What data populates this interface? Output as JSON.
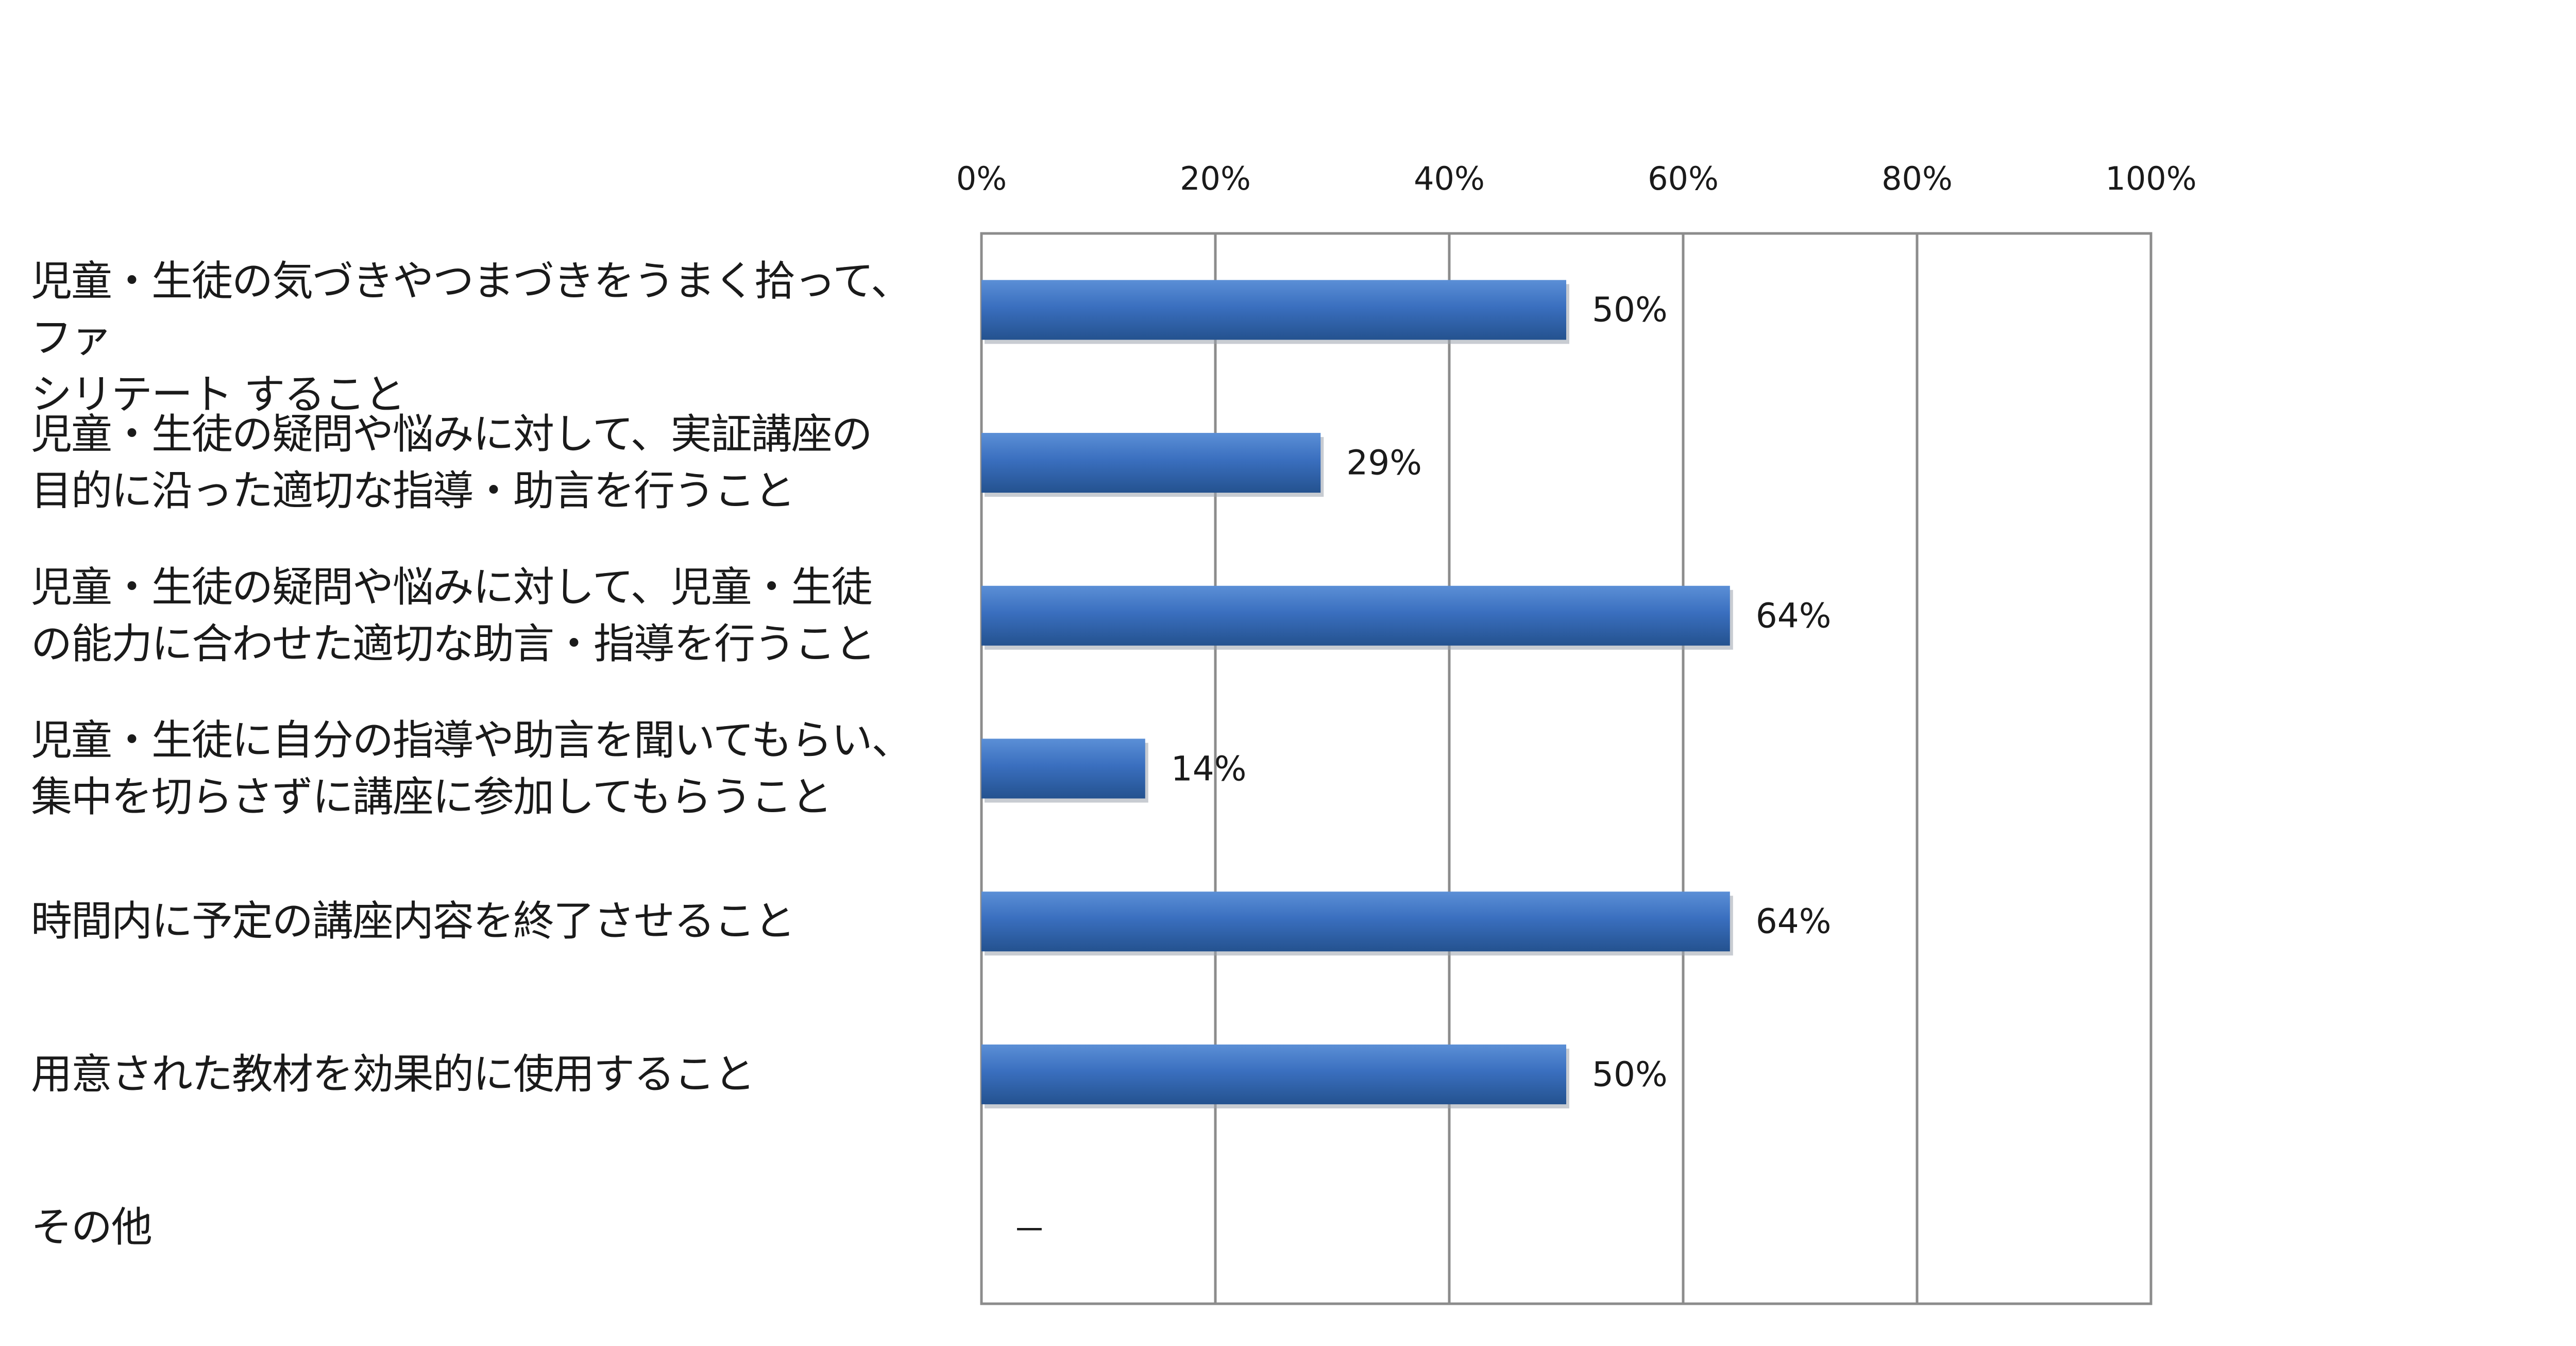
{
  "chart_data": {
    "type": "bar",
    "orientation": "horizontal",
    "categories": [
      "児童・生徒の気づきやつまづきをうまく拾って、ファ\nシリテート すること",
      "児童・生徒の疑問や悩みに対して、実証講座の\n目的に沿った適切な指導・助言を行うこと",
      "児童・生徒の疑問や悩みに対して、児童・生徒\nの能力に合わせた適切な助言・指導を行うこと",
      "児童・生徒に自分の指導や助言を聞いてもらい、\n集中を切らさずに講座に参加してもらうこと",
      "時間内に予定の講座内容を終了させること",
      "用意された教材を効果的に使用すること",
      "その他"
    ],
    "values": [
      50,
      29,
      64,
      14,
      64,
      50,
      null
    ],
    "value_labels": [
      "50%",
      "29%",
      "64%",
      "14%",
      "64%",
      "50%",
      "－"
    ],
    "xlim": [
      0,
      100
    ],
    "x_ticks": [
      0,
      20,
      40,
      60,
      80,
      100
    ],
    "x_tick_labels": [
      "0%",
      "20%",
      "40%",
      "60%",
      "80%",
      "100%"
    ],
    "axis_position": "top",
    "grid": true,
    "legend": "none",
    "colors": {
      "bar_top": "#5b8fd6",
      "bar_mid": "#3a6fbf",
      "bar_bottom": "#24528f",
      "grid": "#8c8c8c",
      "text": "#1a1a1a"
    },
    "title": "",
    "xlabel": "",
    "ylabel": ""
  }
}
